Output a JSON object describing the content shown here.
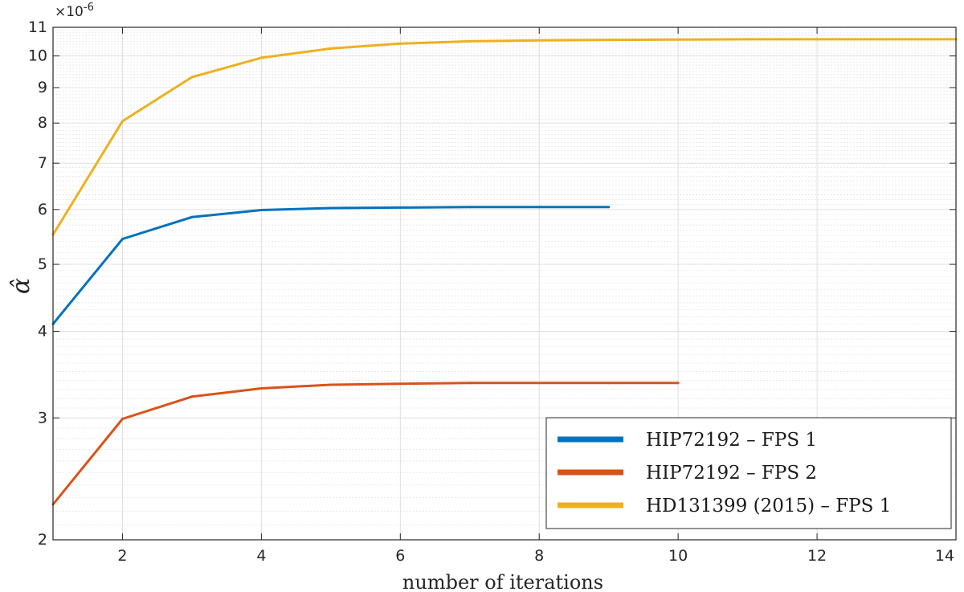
{
  "chart_data": {
    "type": "line",
    "xlabel": "number of iterations",
    "ylabel": "α̂",
    "y_multiplier_label": "×10",
    "y_multiplier_exponent": "-6",
    "y_scale": "log",
    "xlim": [
      1,
      14
    ],
    "ylim": [
      2.0,
      11.0
    ],
    "x_ticks": [
      2,
      4,
      6,
      8,
      10,
      12,
      14
    ],
    "y_ticks": [
      2,
      3,
      4,
      5,
      6,
      7,
      8,
      9,
      10,
      11
    ],
    "grid": true,
    "legend_position": "bottom-right",
    "series": [
      {
        "name": "HIP72192 – FPS 1",
        "color": "#0072BD",
        "x": [
          1,
          2,
          3,
          4,
          5,
          6,
          7,
          8,
          9
        ],
        "y": [
          4.1,
          5.44,
          5.85,
          5.99,
          6.03,
          6.04,
          6.05,
          6.05,
          6.05
        ]
      },
      {
        "name": "HIP72192 – FPS 2",
        "color": "#D95319",
        "x": [
          1,
          2,
          3,
          4,
          5,
          6,
          7,
          8,
          9,
          10
        ],
        "y": [
          2.25,
          2.99,
          3.22,
          3.31,
          3.35,
          3.36,
          3.37,
          3.37,
          3.37,
          3.37
        ]
      },
      {
        "name": "HD131399 (2015) – FPS 1",
        "color": "#EDB120",
        "x": [
          1,
          2,
          3,
          4,
          5,
          6,
          7,
          8,
          9,
          10,
          11,
          12,
          13,
          14
        ],
        "y": [
          5.52,
          8.05,
          9.32,
          9.94,
          10.25,
          10.42,
          10.5,
          10.53,
          10.55,
          10.56,
          10.57,
          10.57,
          10.57,
          10.57
        ]
      }
    ]
  }
}
